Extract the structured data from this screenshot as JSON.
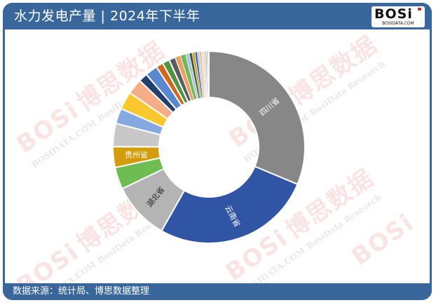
{
  "header": {
    "title": "水力发电产量 | 2024年下半年",
    "logo_text": "BOSi",
    "logo_subtext": "BOSIDATA.COM"
  },
  "footer": {
    "source": "数据来源：统计局、博思数据整理"
  },
  "watermark": {
    "brand": "BOSi",
    "cn": "博思数据",
    "en": "BosiData Research",
    "site": "BOSIDATA.COM"
  },
  "colors": {
    "header_bg": "#3a679b",
    "sichuan": "#878787",
    "yunnan": "#2f55a4",
    "hubei": "#b4b4b4",
    "guizhou": "#d49b0a"
  },
  "chart_data": {
    "type": "pie",
    "subtype": "donut",
    "title": "水力发电产量 | 2024年下半年",
    "start_angle": 0,
    "direction": "clockwise",
    "inner_radius_ratio": 0.5,
    "legend": "none",
    "slices": [
      {
        "label": "四川省",
        "value": 31.3,
        "color": "#878787",
        "show_label": true
      },
      {
        "label": "云南省",
        "value": 26.9,
        "color": "#2f55a4",
        "show_label": true
      },
      {
        "label": "湖北省",
        "value": 9.7,
        "color": "#b4b4b4",
        "show_label": true
      },
      {
        "label": "",
        "value": 3.7,
        "color": "#6fbd52",
        "show_label": false
      },
      {
        "label": "贵州省",
        "value": 3.5,
        "color": "#d49b0a",
        "show_label": true
      },
      {
        "label": "",
        "value": 3.9,
        "color": "#c8c8c8",
        "show_label": false
      },
      {
        "label": "",
        "value": 2.6,
        "color": "#86a8e0",
        "show_label": false
      },
      {
        "label": "",
        "value": 3.0,
        "color": "#fbc72e",
        "show_label": false
      },
      {
        "label": "",
        "value": 2.6,
        "color": "#f4ad86",
        "show_label": false
      },
      {
        "label": "",
        "value": 1.5,
        "color": "#233f70",
        "show_label": false
      },
      {
        "label": "",
        "value": 2.1,
        "color": "#5b87cf",
        "show_label": false
      },
      {
        "label": "",
        "value": 1.2,
        "color": "#d2661e",
        "show_label": false
      },
      {
        "label": "",
        "value": 1.2,
        "color": "#4f9440",
        "show_label": false
      },
      {
        "label": "",
        "value": 1.1,
        "color": "#5c5c5c",
        "show_label": false
      },
      {
        "label": "",
        "value": 0.9,
        "color": "#ef9d66",
        "show_label": false
      },
      {
        "label": "",
        "value": 0.9,
        "color": "#72b955",
        "show_label": false
      },
      {
        "label": "",
        "value": 0.6,
        "color": "#a6c3ea",
        "show_label": false
      },
      {
        "label": "",
        "value": 0.5,
        "color": "#3e5a2c",
        "show_label": false
      },
      {
        "label": "",
        "value": 0.45,
        "color": "#c9a227",
        "show_label": false
      },
      {
        "label": "",
        "value": 0.4,
        "color": "#3a5d9c",
        "show_label": false
      },
      {
        "label": "",
        "value": 0.35,
        "color": "#a9c5ee",
        "show_label": false
      },
      {
        "label": "",
        "value": 0.35,
        "color": "#e8b48c",
        "show_label": false
      },
      {
        "label": "",
        "value": 0.3,
        "color": "#d9d9d9",
        "show_label": false
      },
      {
        "label": "",
        "value": 0.3,
        "color": "#f6d07a",
        "show_label": false
      },
      {
        "label": "",
        "value": 0.25,
        "color": "#9bbbe0",
        "show_label": false
      },
      {
        "label": "",
        "value": 0.2,
        "color": "#c0a080",
        "show_label": false
      },
      {
        "label": "",
        "value": 0.2,
        "color": "#e2e2e2",
        "show_label": false
      }
    ]
  }
}
